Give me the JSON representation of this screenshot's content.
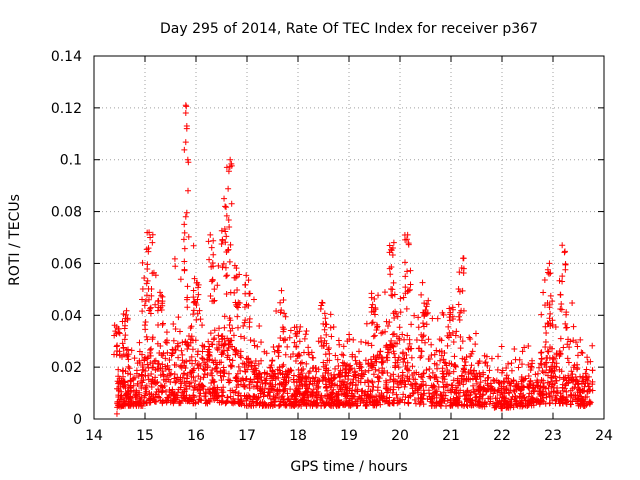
{
  "chart_data": {
    "type": "scatter",
    "title": "Day 295 of 2014, Rate Of TEC Index for receiver p367",
    "xlabel": "GPS time / hours",
    "ylabel": "ROTI / TECUs",
    "xlim": [
      14,
      24
    ],
    "ylim": [
      0,
      0.14
    ],
    "xticks": [
      14,
      15,
      16,
      17,
      18,
      19,
      20,
      21,
      22,
      23,
      24
    ],
    "yticks": [
      0,
      0.02,
      0.04,
      0.06,
      0.08,
      0.1,
      0.12,
      0.14
    ],
    "xtick_labels": [
      "14",
      "15",
      "16",
      "17",
      "18",
      "19",
      "20",
      "21",
      "22",
      "23",
      "24"
    ],
    "ytick_labels": [
      "0",
      "0.02",
      "0.04",
      "0.06",
      "0.08",
      "0.1",
      "0.12",
      "0.14"
    ],
    "grid": true,
    "marker": "+",
    "color": "#ff0000",
    "series": [
      {
        "name": "ROTI",
        "x_range_hours": [
          14.45,
          23.78
        ],
        "envelope": [
          {
            "x": 14.45,
            "low": 0.004,
            "high": 0.024,
            "peak": 0.037
          },
          {
            "x": 14.6,
            "low": 0.005,
            "high": 0.026,
            "peak": 0.043
          },
          {
            "x": 14.8,
            "low": 0.005,
            "high": 0.022,
            "peak": 0.033
          },
          {
            "x": 15.0,
            "low": 0.005,
            "high": 0.034,
            "peak": 0.062
          },
          {
            "x": 15.1,
            "low": 0.006,
            "high": 0.04,
            "peak": 0.072
          },
          {
            "x": 15.3,
            "low": 0.006,
            "high": 0.035,
            "peak": 0.05
          },
          {
            "x": 15.5,
            "low": 0.006,
            "high": 0.038,
            "peak": 0.045
          },
          {
            "x": 15.8,
            "low": 0.006,
            "high": 0.045,
            "peak": 0.121
          },
          {
            "x": 16.0,
            "low": 0.006,
            "high": 0.04,
            "peak": 0.055
          },
          {
            "x": 16.3,
            "low": 0.006,
            "high": 0.045,
            "peak": 0.071
          },
          {
            "x": 16.55,
            "low": 0.006,
            "high": 0.05,
            "peak": 0.085
          },
          {
            "x": 16.65,
            "low": 0.006,
            "high": 0.048,
            "peak": 0.1
          },
          {
            "x": 16.8,
            "low": 0.006,
            "high": 0.04,
            "peak": 0.06
          },
          {
            "x": 17.0,
            "low": 0.005,
            "high": 0.035,
            "peak": 0.056
          },
          {
            "x": 17.3,
            "low": 0.005,
            "high": 0.025,
            "peak": 0.035
          },
          {
            "x": 17.7,
            "low": 0.005,
            "high": 0.03,
            "peak": 0.05
          },
          {
            "x": 18.0,
            "low": 0.005,
            "high": 0.024,
            "peak": 0.037
          },
          {
            "x": 18.5,
            "low": 0.005,
            "high": 0.03,
            "peak": 0.045
          },
          {
            "x": 19.0,
            "low": 0.005,
            "high": 0.03,
            "peak": 0.038
          },
          {
            "x": 19.5,
            "low": 0.005,
            "high": 0.034,
            "peak": 0.05
          },
          {
            "x": 19.85,
            "low": 0.006,
            "high": 0.045,
            "peak": 0.068
          },
          {
            "x": 20.15,
            "low": 0.006,
            "high": 0.048,
            "peak": 0.071
          },
          {
            "x": 20.5,
            "low": 0.005,
            "high": 0.035,
            "peak": 0.05
          },
          {
            "x": 21.0,
            "low": 0.005,
            "high": 0.03,
            "peak": 0.045
          },
          {
            "x": 21.2,
            "low": 0.005,
            "high": 0.035,
            "peak": 0.062
          },
          {
            "x": 21.5,
            "low": 0.005,
            "high": 0.028,
            "peak": 0.04
          },
          {
            "x": 22.0,
            "low": 0.004,
            "high": 0.02,
            "peak": 0.028
          },
          {
            "x": 22.5,
            "low": 0.005,
            "high": 0.022,
            "peak": 0.033
          },
          {
            "x": 22.9,
            "low": 0.006,
            "high": 0.035,
            "peak": 0.06
          },
          {
            "x": 23.2,
            "low": 0.006,
            "high": 0.038,
            "peak": 0.067
          },
          {
            "x": 23.5,
            "low": 0.005,
            "high": 0.028,
            "peak": 0.035
          },
          {
            "x": 23.78,
            "low": 0.005,
            "high": 0.022,
            "peak": 0.03
          }
        ],
        "notable_points": [
          {
            "x": 14.45,
            "y": 0.002
          },
          {
            "x": 15.8,
            "y": 0.121
          },
          {
            "x": 15.8,
            "y": 0.118
          },
          {
            "x": 15.82,
            "y": 0.113
          },
          {
            "x": 15.82,
            "y": 0.112
          },
          {
            "x": 15.84,
            "y": 0.1
          },
          {
            "x": 15.85,
            "y": 0.099
          },
          {
            "x": 15.8,
            "y": 0.078
          },
          {
            "x": 16.55,
            "y": 0.085
          },
          {
            "x": 16.57,
            "y": 0.082
          },
          {
            "x": 16.67,
            "y": 0.1
          },
          {
            "x": 16.7,
            "y": 0.083
          },
          {
            "x": 15.08,
            "y": 0.072
          },
          {
            "x": 15.1,
            "y": 0.07
          },
          {
            "x": 16.28,
            "y": 0.071
          },
          {
            "x": 19.88,
            "y": 0.068
          },
          {
            "x": 20.15,
            "y": 0.071
          },
          {
            "x": 21.25,
            "y": 0.062
          },
          {
            "x": 22.93,
            "y": 0.06
          },
          {
            "x": 23.18,
            "y": 0.067
          }
        ]
      }
    ]
  }
}
